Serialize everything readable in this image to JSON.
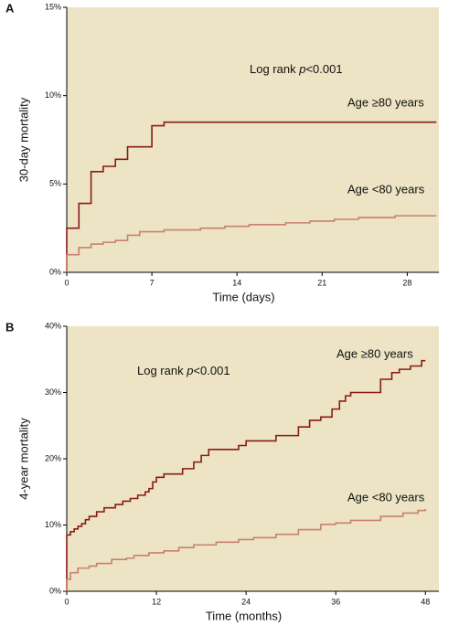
{
  "chart_data": [
    {
      "type": "line",
      "panel_label": "A",
      "drawstyle": "steps-post",
      "background": "#ece4c4",
      "xlabel": "Time (days)",
      "ylabel": "30-day mortality",
      "annotation": {
        "prefix": "Log rank ",
        "italic": "p",
        "suffix": "<0.001"
      },
      "xlim": [
        0,
        30.6
      ],
      "xticks": [
        0,
        7,
        14,
        21,
        28
      ],
      "ylim": [
        0,
        15
      ],
      "yticks": [
        {
          "value": 0,
          "label": "0%"
        },
        {
          "value": 5,
          "label": "5%"
        },
        {
          "value": 10,
          "label": "10%"
        },
        {
          "value": 15,
          "label": "15%"
        }
      ],
      "series": [
        {
          "name": "Age ≥80 years",
          "color": "#8b1a1a",
          "x": [
            0,
            0,
            1,
            2,
            3,
            4,
            5,
            7,
            8,
            30.4
          ],
          "values": [
            0,
            2.5,
            3.9,
            5.7,
            6.0,
            6.4,
            7.1,
            8.3,
            8.5,
            8.5
          ]
        },
        {
          "name": "Age <80 years",
          "color": "#c98070",
          "x": [
            0,
            0,
            1,
            2,
            3,
            4,
            5,
            6,
            8,
            11,
            13,
            15,
            18,
            20,
            22,
            24,
            27,
            30.4
          ],
          "values": [
            0,
            1.0,
            1.4,
            1.6,
            1.7,
            1.8,
            2.1,
            2.3,
            2.4,
            2.5,
            2.6,
            2.7,
            2.8,
            2.9,
            3.0,
            3.1,
            3.2,
            3.2
          ]
        }
      ]
    },
    {
      "type": "line",
      "panel_label": "B",
      "drawstyle": "steps-post",
      "background": "#ece4c4",
      "xlabel": "Time (months)",
      "ylabel": "4-year mortality",
      "annotation": {
        "prefix": "Log rank ",
        "italic": "p",
        "suffix": "<0.001"
      },
      "xlim": [
        0,
        49.8
      ],
      "xticks": [
        0,
        12,
        24,
        36,
        48
      ],
      "ylim": [
        0,
        40
      ],
      "yticks": [
        {
          "value": 0,
          "label": "0%"
        },
        {
          "value": 10,
          "label": "10%"
        },
        {
          "value": 20,
          "label": "20%"
        },
        {
          "value": 30,
          "label": "30%"
        },
        {
          "value": 40,
          "label": "40%"
        }
      ],
      "series": [
        {
          "name": "Age ≥80 years",
          "color": "#8b1a1a",
          "x": [
            0,
            0,
            0.5,
            1,
            1.5,
            2,
            2.5,
            3,
            4,
            5,
            6.5,
            7.5,
            8.5,
            9.5,
            10.5,
            11,
            11.5,
            12,
            13,
            15.5,
            17,
            18,
            19,
            23,
            24,
            28,
            31,
            32.5,
            34,
            35.5,
            36.5,
            37.3,
            38,
            42,
            43.5,
            44.5,
            46,
            47.5,
            48
          ],
          "values": [
            0,
            8.5,
            9.0,
            9.4,
            9.8,
            10.2,
            10.8,
            11.3,
            12.0,
            12.6,
            13.1,
            13.6,
            14.0,
            14.5,
            15.0,
            15.5,
            16.5,
            17.2,
            17.7,
            18.5,
            19.5,
            20.5,
            21.4,
            22.0,
            22.7,
            23.5,
            24.8,
            25.8,
            26.3,
            27.5,
            28.7,
            29.5,
            30.0,
            32.0,
            33.0,
            33.5,
            34.0,
            34.8,
            34.8
          ]
        },
        {
          "name": "Age <80 years",
          "color": "#c98070",
          "x": [
            0,
            0,
            0.5,
            1.5,
            3,
            4,
            6,
            8,
            9,
            11,
            13,
            15,
            17,
            20,
            23,
            25,
            28,
            31,
            34,
            36,
            38,
            42,
            45,
            47,
            48
          ],
          "values": [
            0,
            1.8,
            2.8,
            3.5,
            3.8,
            4.2,
            4.8,
            5.0,
            5.4,
            5.8,
            6.1,
            6.6,
            7.0,
            7.4,
            7.8,
            8.1,
            8.6,
            9.3,
            10.1,
            10.3,
            10.7,
            11.3,
            11.8,
            12.2,
            12.4
          ]
        }
      ]
    }
  ]
}
